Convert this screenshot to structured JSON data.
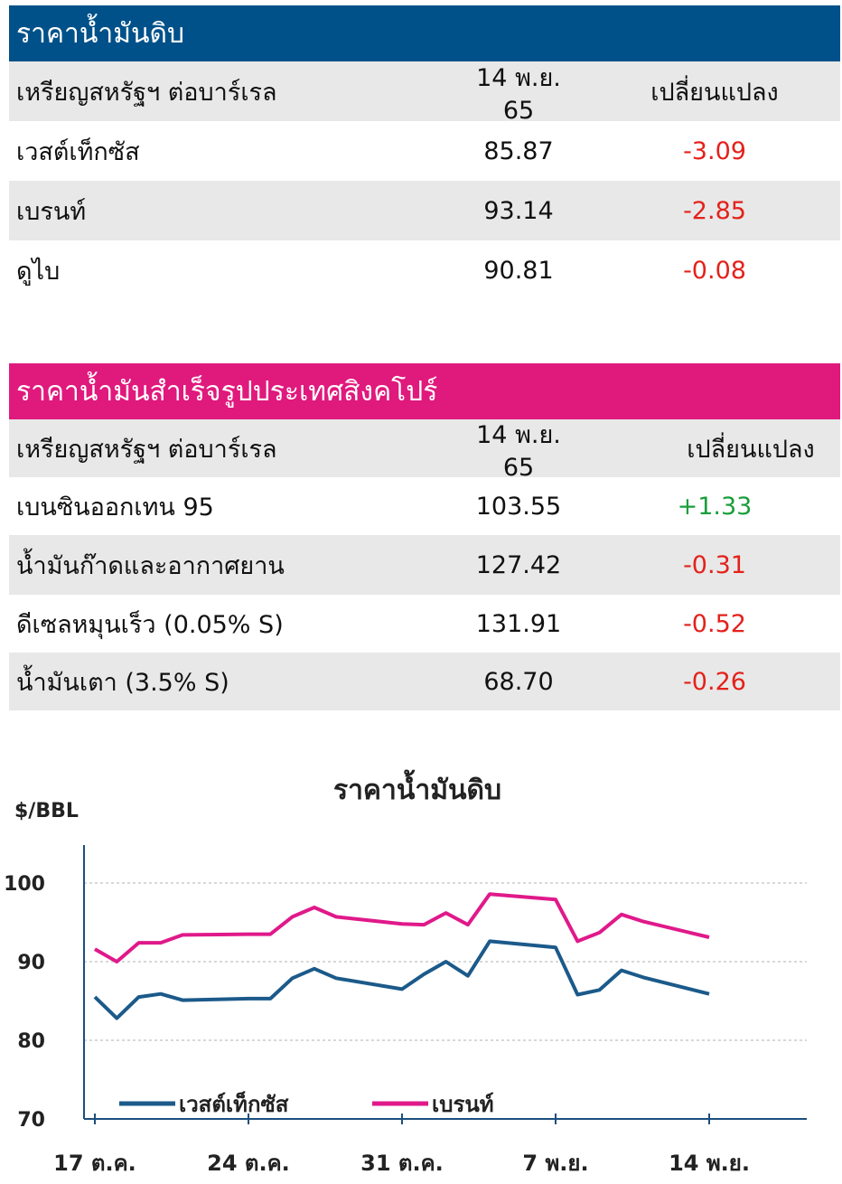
{
  "crude_table": {
    "title": "ราคาน้ำมันดิบ",
    "header_color": "#005189",
    "columns": [
      "เหรียญสหรัฐฯ ต่อบาร์เรล",
      "14 พ.ย. 65",
      "เปลี่ยนแปลง"
    ],
    "rows": [
      {
        "name": "เวสต์เท็กซัส",
        "price": "85.87",
        "change": "-3.09"
      },
      {
        "name": "เบรนท์",
        "price": "93.14",
        "change": "-2.85"
      },
      {
        "name": "ดูไบ",
        "price": "90.81",
        "change": "-0.08"
      }
    ]
  },
  "singapore_table": {
    "title": "ราคาน้ำมันสำเร็จรูปประเทศสิงคโปร์",
    "header_color": "#e0197d",
    "columns": [
      "เหรียญสหรัฐฯ ต่อบาร์เรล",
      "14 พ.ย. 65",
      "เปลี่ยนแปลง"
    ],
    "rows": [
      {
        "name": "เบนซินออกเทน 95",
        "price": "103.55",
        "change": "+1.33"
      },
      {
        "name": "น้ำมันก๊าดและอากาศยาน",
        "price": "127.42",
        "change": "-0.31"
      },
      {
        "name": "ดีเซลหมุนเร็ว (0.05% S)",
        "price": "131.91",
        "change": "-0.52"
      },
      {
        "name": "น้ำมันเตา (3.5% S)",
        "price": "68.70",
        "change": "-0.26"
      }
    ]
  },
  "colors": {
    "negative": "#e4211b",
    "positive": "#1a9e3a"
  },
  "chart_data": {
    "type": "line",
    "title": "ราคาน้ำมันดิบ",
    "ylabel": "$/BBL",
    "ylim": [
      70,
      100
    ],
    "yticks": [
      70,
      80,
      90,
      100
    ],
    "grid": true,
    "legend_position": "bottom-left",
    "x_tick_labels": [
      "17 ต.ค.",
      "24 ต.ค.",
      "31 ต.ค.",
      "7 พ.ย.",
      "14 พ.ย."
    ],
    "x_dates": [
      "2022-10-17",
      "2022-10-18",
      "2022-10-19",
      "2022-10-20",
      "2022-10-21",
      "2022-10-24",
      "2022-10-25",
      "2022-10-26",
      "2022-10-27",
      "2022-10-28",
      "2022-10-31",
      "2022-11-01",
      "2022-11-02",
      "2022-11-03",
      "2022-11-04",
      "2022-11-07",
      "2022-11-08",
      "2022-11-09",
      "2022-11-10",
      "2022-11-11",
      "2022-11-14"
    ],
    "series": [
      {
        "name": "เวสต์เท็กซัส",
        "color": "#1b5a8a",
        "values": [
          85.5,
          82.8,
          85.5,
          85.9,
          85.1,
          85.3,
          85.3,
          87.9,
          89.1,
          87.9,
          86.5,
          88.4,
          90.0,
          88.2,
          92.6,
          91.8,
          85.8,
          86.4,
          88.9,
          88.0,
          85.9
        ]
      },
      {
        "name": "เบรนท์",
        "color": "#e0198a",
        "values": [
          91.6,
          90.0,
          92.4,
          92.4,
          93.4,
          93.5,
          93.5,
          95.7,
          96.9,
          95.7,
          94.8,
          94.7,
          96.2,
          94.7,
          98.6,
          97.9,
          92.6,
          93.7,
          96.0,
          95.1,
          93.1
        ]
      }
    ]
  }
}
